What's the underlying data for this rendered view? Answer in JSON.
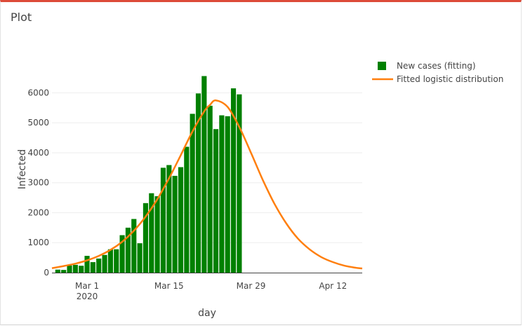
{
  "panel": {
    "title": "Plot"
  },
  "chart_data": {
    "type": "bar",
    "xlabel": "day",
    "ylabel": "Infected",
    "xlim": [
      "2020-02-24",
      "2020-04-17"
    ],
    "ylim": [
      0,
      6900
    ],
    "grid": true,
    "legend_position": "right",
    "y_ticks": [
      0,
      1000,
      2000,
      3000,
      4000,
      5000,
      6000
    ],
    "x_ticks": [
      {
        "date": "2020-03-01",
        "label": "Mar 1",
        "sublabel": "2020"
      },
      {
        "date": "2020-03-15",
        "label": "Mar 15",
        "sublabel": ""
      },
      {
        "date": "2020-03-29",
        "label": "Mar 29",
        "sublabel": ""
      },
      {
        "date": "2020-04-12",
        "label": "Apr 12",
        "sublabel": ""
      }
    ],
    "series": [
      {
        "name": "New cases (fitting)",
        "type": "bar",
        "color": "#008000",
        "x": [
          "2020-02-25",
          "2020-02-26",
          "2020-02-27",
          "2020-02-28",
          "2020-02-29",
          "2020-03-01",
          "2020-03-02",
          "2020-03-03",
          "2020-03-04",
          "2020-03-05",
          "2020-03-06",
          "2020-03-07",
          "2020-03-08",
          "2020-03-09",
          "2020-03-10",
          "2020-03-11",
          "2020-03-12",
          "2020-03-13",
          "2020-03-14",
          "2020-03-15",
          "2020-03-16",
          "2020-03-17",
          "2020-03-18",
          "2020-03-19",
          "2020-03-20",
          "2020-03-21",
          "2020-03-22",
          "2020-03-23",
          "2020-03-24",
          "2020-03-25",
          "2020-03-26",
          "2020-03-27",
          "2020-03-28"
        ],
        "values": [
          100,
          90,
          240,
          260,
          230,
          560,
          350,
          470,
          590,
          780,
          780,
          1250,
          1500,
          1790,
          980,
          2320,
          2650,
          2550,
          3500,
          3590,
          3230,
          3520,
          4200,
          5300,
          5980,
          6560,
          5570,
          4790,
          5250,
          5220,
          6150,
          5950,
          0
        ]
      },
      {
        "name": "Fitted logistic distribution",
        "type": "line",
        "color": "#ff7f0e",
        "x": [
          "2020-02-24",
          "2020-02-26",
          "2020-02-28",
          "2020-03-01",
          "2020-03-03",
          "2020-03-05",
          "2020-03-07",
          "2020-03-09",
          "2020-03-11",
          "2020-03-13",
          "2020-03-15",
          "2020-03-17",
          "2020-03-19",
          "2020-03-21",
          "2020-03-22",
          "2020-03-23",
          "2020-03-25",
          "2020-03-27",
          "2020-03-29",
          "2020-03-31",
          "2020-04-02",
          "2020-04-04",
          "2020-04-06",
          "2020-04-08",
          "2020-04-10",
          "2020-04-12",
          "2020-04-14",
          "2020-04-16",
          "2020-04-17"
        ],
        "values": [
          150,
          220,
          300,
          410,
          560,
          760,
          1030,
          1400,
          1870,
          2450,
          3150,
          3920,
          4710,
          5380,
          5600,
          5750,
          5530,
          4860,
          4000,
          3100,
          2300,
          1650,
          1140,
          780,
          520,
          350,
          230,
          160,
          140
        ]
      }
    ]
  }
}
